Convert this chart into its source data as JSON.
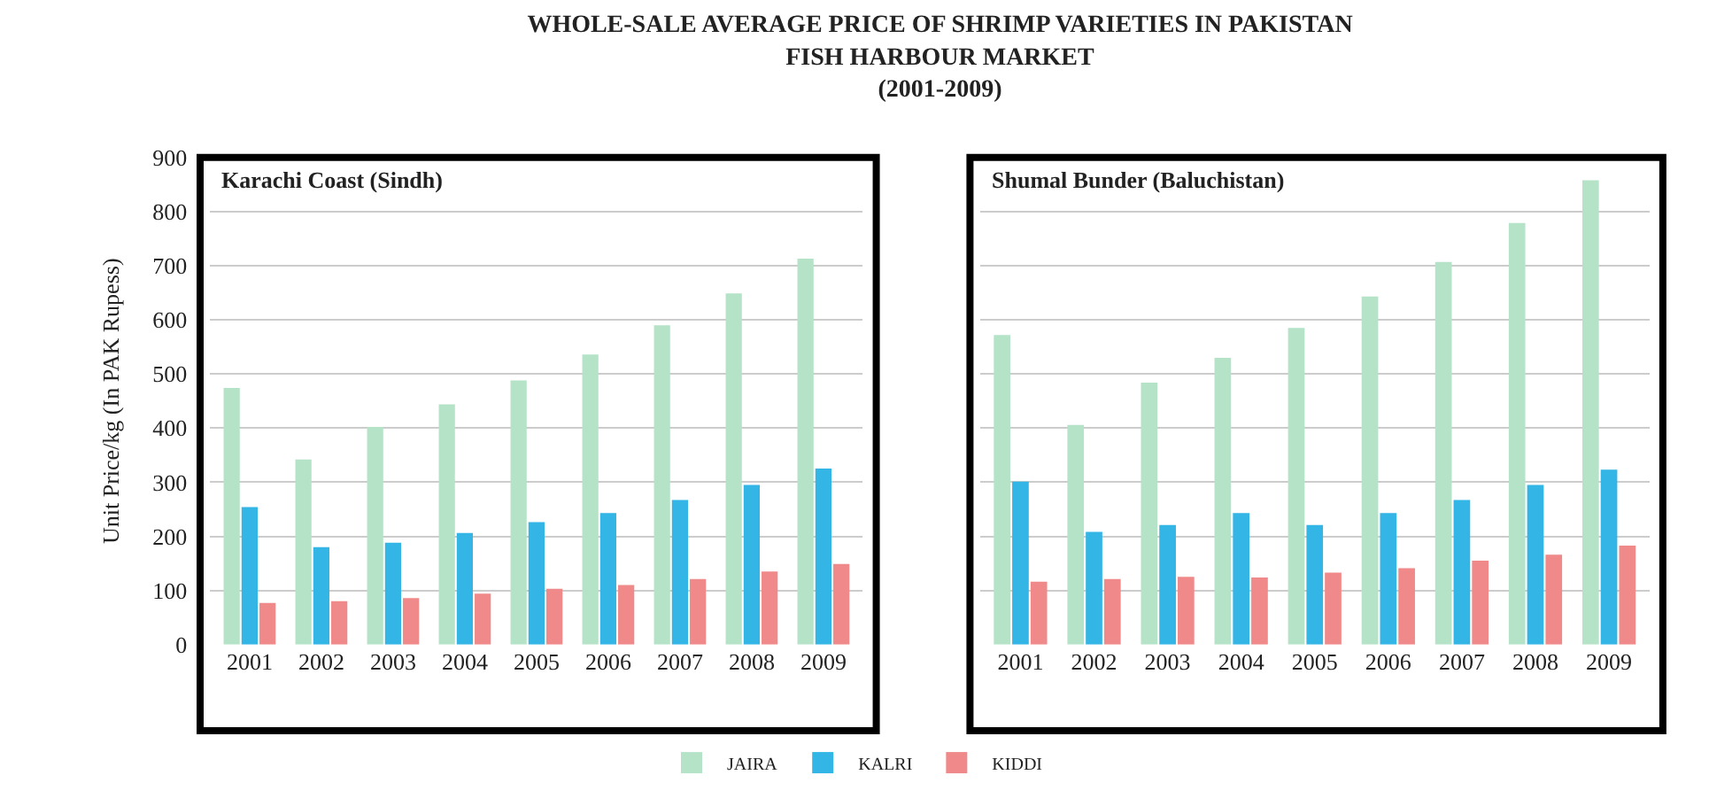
{
  "chart_data": [
    {
      "type": "bar",
      "title": "WHOLE-SALE AVERAGE PRICE OF SHRIMP VARIETIES IN PAKISTAN\nFISH HARBOUR MARKET\n(2001-2009)",
      "subtitle": "Karachi Coast (Sindh)",
      "ylabel": "Unit Price/kg (In PAK Rupess)",
      "categories": [
        "2001",
        "2002",
        "2003",
        "2004",
        "2005",
        "2006",
        "2007",
        "2008",
        "2009"
      ],
      "ylim": [
        0,
        900
      ],
      "yticks": [
        0,
        100,
        200,
        300,
        400,
        500,
        600,
        700,
        800,
        900
      ],
      "grid": "y",
      "legend": "bottom",
      "series": [
        {
          "name": "JAIRA",
          "color": "#b5e3c8",
          "values": [
            474,
            342,
            402,
            444,
            488,
            536,
            590,
            649,
            713
          ]
        },
        {
          "name": "KALRI",
          "color": "#33b5e5",
          "values": [
            254,
            180,
            188,
            206,
            226,
            243,
            267,
            295,
            325
          ]
        },
        {
          "name": "KIDDI",
          "color": "#f08a8a",
          "values": [
            77,
            80,
            86,
            94,
            103,
            110,
            121,
            135,
            149
          ]
        }
      ]
    },
    {
      "type": "bar",
      "subtitle": "Shumal Bunder (Baluchistan)",
      "categories": [
        "2001",
        "2002",
        "2003",
        "2004",
        "2005",
        "2006",
        "2007",
        "2008",
        "2009"
      ],
      "ylim": [
        0,
        900
      ],
      "yticks": [
        0,
        100,
        200,
        300,
        400,
        500,
        600,
        700,
        800,
        900
      ],
      "grid": "y",
      "tick_labels": "x",
      "series": [
        {
          "color": "#b5e3c8",
          "values": [
            572,
            406,
            484,
            530,
            585,
            643,
            707,
            779,
            858
          ]
        },
        {
          "color": "#33b5e5",
          "values": [
            301,
            208,
            221,
            243,
            221,
            243,
            267,
            295,
            323
          ]
        },
        {
          "color": "#f08a8a",
          "values": [
            116,
            121,
            125,
            124,
            133,
            141,
            155,
            166,
            183
          ]
        }
      ]
    }
  ]
}
